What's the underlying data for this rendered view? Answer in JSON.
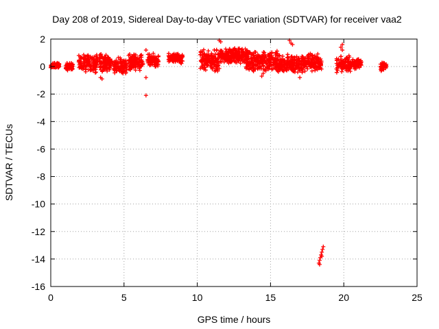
{
  "chart_data": {
    "type": "scatter",
    "title": "Day 208 of 2019, Sidereal Day-to-day VTEC variation (SDTVAR) for receiver vaa2",
    "xlabel": "GPS time / hours",
    "ylabel": "SDTVAR / TECUs",
    "xlim": [
      0,
      25
    ],
    "ylim": [
      -16,
      2
    ],
    "x_ticks": [
      "0",
      "5",
      "10",
      "15",
      "20",
      "25"
    ],
    "y_ticks": [
      "2",
      "0",
      "-2",
      "-4",
      "-6",
      "-8",
      "-10",
      "-12",
      "-14",
      "-16"
    ],
    "x_tick_values": [
      0,
      5,
      10,
      15,
      20,
      25
    ],
    "y_tick_values": [
      2,
      0,
      -2,
      -4,
      -6,
      -8,
      -10,
      -12,
      -14,
      -16
    ],
    "grid": true,
    "marker": "plus",
    "marker_color": "#ff0000",
    "clusters": [
      {
        "x": [
          0.0,
          0.6
        ],
        "y": [
          -0.2,
          0.3
        ]
      },
      {
        "x": [
          1.0,
          1.5
        ],
        "y": [
          -0.3,
          0.3
        ]
      },
      {
        "x": [
          1.9,
          3.2
        ],
        "y": [
          -0.5,
          0.9
        ]
      },
      {
        "x": [
          3.3,
          4.2
        ],
        "y": [
          -0.4,
          1.0
        ]
      },
      {
        "x": [
          4.3,
          5.2
        ],
        "y": [
          -0.6,
          0.7
        ]
      },
      {
        "x": [
          5.3,
          6.3
        ],
        "y": [
          -0.4,
          1.0
        ]
      },
      {
        "x": [
          6.6,
          7.4
        ],
        "y": [
          -0.1,
          1.0
        ]
      },
      {
        "x": [
          8.0,
          9.0
        ],
        "y": [
          0.2,
          1.0
        ]
      },
      {
        "x": [
          10.2,
          11.5
        ],
        "y": [
          -0.4,
          1.3
        ]
      },
      {
        "x": [
          11.5,
          13.5
        ],
        "y": [
          0.2,
          1.4
        ]
      },
      {
        "x": [
          13.3,
          15.5
        ],
        "y": [
          -0.4,
          1.2
        ]
      },
      {
        "x": [
          15.5,
          17.5
        ],
        "y": [
          -0.5,
          0.9
        ]
      },
      {
        "x": [
          17.5,
          18.5
        ],
        "y": [
          -0.4,
          1.0
        ]
      },
      {
        "x": [
          19.5,
          20.5
        ],
        "y": [
          -0.5,
          0.8
        ]
      },
      {
        "x": [
          20.5,
          21.2
        ],
        "y": [
          -0.2,
          0.6
        ]
      },
      {
        "x": [
          22.5,
          22.9
        ],
        "y": [
          -0.4,
          0.4
        ]
      }
    ],
    "outliers": [
      {
        "x": 3.5,
        "y": -0.9
      },
      {
        "x": 3.4,
        "y": -0.8
      },
      {
        "x": 6.5,
        "y": -2.1
      },
      {
        "x": 6.5,
        "y": 1.2
      },
      {
        "x": 6.5,
        "y": -0.8
      },
      {
        "x": 11.5,
        "y": 1.9
      },
      {
        "x": 11.6,
        "y": 1.8
      },
      {
        "x": 14.4,
        "y": -0.7
      },
      {
        "x": 14.5,
        "y": -0.5
      },
      {
        "x": 16.3,
        "y": 1.9
      },
      {
        "x": 16.4,
        "y": 1.7
      },
      {
        "x": 16.5,
        "y": 1.6
      },
      {
        "x": 17.0,
        "y": -0.8
      },
      {
        "x": 19.8,
        "y": 1.4
      },
      {
        "x": 19.9,
        "y": 1.6
      },
      {
        "x": 19.9,
        "y": 1.2
      },
      {
        "x": 18.3,
        "y": -14.3
      },
      {
        "x": 18.35,
        "y": -14.1
      },
      {
        "x": 18.4,
        "y": -13.9
      },
      {
        "x": 18.45,
        "y": -13.7
      },
      {
        "x": 18.5,
        "y": -13.5
      },
      {
        "x": 18.55,
        "y": -13.3
      },
      {
        "x": 18.6,
        "y": -13.1
      },
      {
        "x": 18.35,
        "y": -14.4
      },
      {
        "x": 18.5,
        "y": -13.8
      }
    ]
  }
}
